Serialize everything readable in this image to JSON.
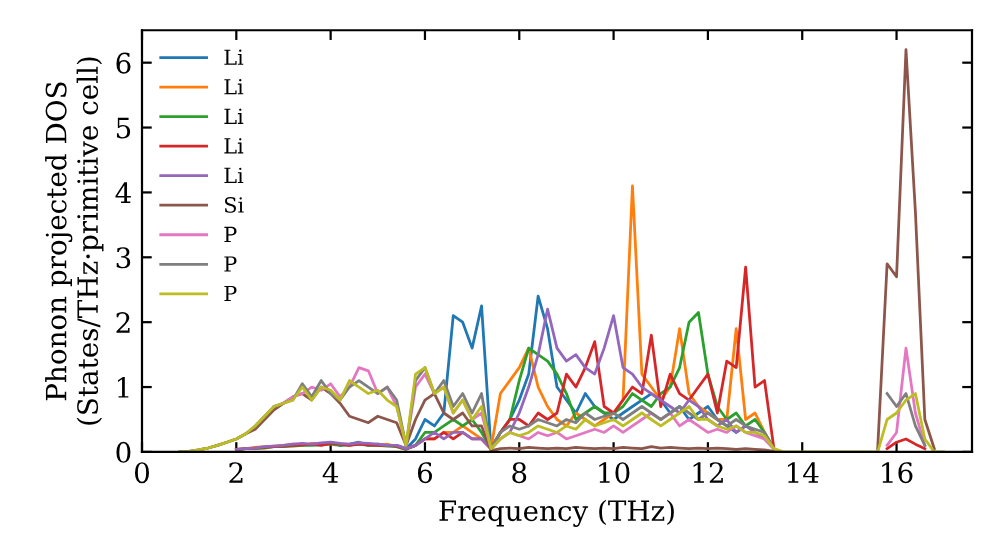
{
  "chart_data": {
    "type": "line",
    "xlabel": "Frequency (THz)",
    "ylabel": "Phonon projected DOS\n(States/THz·primitive cell)",
    "x": [
      0.8,
      1.0,
      1.2,
      1.4,
      1.6,
      1.8,
      2.0,
      2.2,
      2.4,
      2.6,
      2.8,
      3.0,
      3.2,
      3.4,
      3.6,
      3.8,
      4.0,
      4.2,
      4.4,
      4.6,
      4.8,
      5.0,
      5.2,
      5.4,
      5.6,
      5.8,
      6.0,
      6.2,
      6.4,
      6.6,
      6.8,
      7.0,
      7.2,
      7.4,
      7.6,
      7.8,
      8.0,
      8.2,
      8.4,
      8.6,
      8.8,
      9.0,
      9.2,
      9.4,
      9.6,
      9.8,
      10.0,
      10.2,
      10.4,
      10.6,
      10.8,
      11.0,
      11.2,
      11.4,
      11.6,
      11.8,
      12.0,
      12.2,
      12.4,
      12.6,
      12.8,
      13.0,
      13.2,
      13.4,
      13.6,
      13.8,
      14.0,
      14.2,
      14.4,
      14.6,
      14.8,
      15.0,
      15.2,
      15.4,
      15.6,
      15.8,
      16.0,
      16.2,
      16.4,
      16.6,
      16.8,
      17.0
    ],
    "xlim": [
      0,
      17.6
    ],
    "ylim": [
      0,
      6.5
    ],
    "xticks": [
      0,
      2,
      4,
      6,
      8,
      10,
      12,
      14,
      16
    ],
    "yticks": [
      0,
      1,
      2,
      3,
      4,
      5,
      6
    ],
    "legend": "top left",
    "grid": false,
    "series": [
      {
        "name": "Li",
        "color": "#1f77b4",
        "values": [
          null,
          null,
          null,
          null,
          null,
          null,
          null,
          null,
          null,
          null,
          null,
          null,
          null,
          null,
          null,
          null,
          null,
          0.1,
          0.12,
          0.15,
          0.1,
          0.12,
          0.1,
          0.1,
          0.05,
          0.2,
          0.5,
          0.4,
          0.6,
          2.1,
          2.0,
          1.6,
          2.25,
          0.05,
          0.3,
          0.5,
          0.8,
          1.2,
          2.4,
          1.9,
          1.0,
          0.8,
          0.6,
          0.9,
          0.7,
          0.6,
          0.5,
          0.6,
          0.7,
          0.8,
          0.9,
          0.8,
          0.6,
          0.7,
          0.5,
          0.6,
          0.7,
          0.5,
          0.4,
          0.3,
          0.4,
          null,
          null,
          null,
          null,
          null,
          null,
          null,
          null,
          null,
          null,
          null,
          null,
          null,
          null,
          null,
          null,
          null,
          null,
          null,
          null,
          null
        ]
      },
      {
        "name": "Li",
        "color": "#ff7f0e",
        "values": [
          null,
          null,
          null,
          null,
          null,
          null,
          0.04,
          0.05,
          0.07,
          0.08,
          0.09,
          0.1,
          0.12,
          0.1,
          0.13,
          0.12,
          0.14,
          0.12,
          0.1,
          0.14,
          0.12,
          0.1,
          0.12,
          0.08,
          0.04,
          0.1,
          0.2,
          0.2,
          0.3,
          0.3,
          0.4,
          0.3,
          0.2,
          0.05,
          0.9,
          1.1,
          1.3,
          1.6,
          1.0,
          0.7,
          0.5,
          0.4,
          0.6,
          0.5,
          0.4,
          0.5,
          0.6,
          0.8,
          4.1,
          1.2,
          1.0,
          0.8,
          1.0,
          1.9,
          0.9,
          0.7,
          0.6,
          0.5,
          0.5,
          1.9,
          0.5,
          0.6,
          0.3,
          0.05,
          null,
          null,
          null,
          null,
          null,
          null,
          null,
          null,
          null,
          null,
          null,
          null,
          null,
          null,
          null,
          null,
          null,
          null
        ]
      },
      {
        "name": "Li",
        "color": "#2ca02c",
        "values": [
          null,
          null,
          null,
          null,
          null,
          null,
          0.03,
          0.05,
          0.05,
          0.06,
          0.08,
          0.08,
          0.09,
          0.1,
          0.1,
          0.11,
          0.12,
          0.1,
          0.11,
          0.12,
          0.1,
          0.1,
          0.09,
          0.08,
          0.04,
          0.1,
          0.3,
          0.3,
          0.4,
          0.5,
          0.4,
          0.5,
          0.3,
          0.05,
          0.3,
          0.5,
          1.1,
          1.6,
          1.5,
          1.4,
          1.2,
          0.9,
          0.5,
          0.6,
          0.7,
          0.6,
          0.6,
          0.7,
          0.9,
          0.8,
          0.7,
          0.9,
          1.0,
          1.3,
          2.0,
          2.15,
          1.2,
          0.7,
          0.5,
          0.6,
          0.4,
          0.5,
          0.3,
          0.05,
          null,
          null,
          null,
          null,
          null,
          null,
          null,
          null,
          null,
          null,
          null,
          null,
          null,
          null,
          null,
          null,
          null,
          null
        ]
      },
      {
        "name": "Li",
        "color": "#d62728",
        "values": [
          null,
          null,
          null,
          null,
          null,
          null,
          0.04,
          0.05,
          0.06,
          0.07,
          0.08,
          0.09,
          0.1,
          0.11,
          0.12,
          0.1,
          0.13,
          0.12,
          0.1,
          0.12,
          0.11,
          0.1,
          0.1,
          0.09,
          0.05,
          0.1,
          0.2,
          0.2,
          0.3,
          0.2,
          0.3,
          0.2,
          0.2,
          0.05,
          0.3,
          0.5,
          0.5,
          0.4,
          0.6,
          0.5,
          0.6,
          1.2,
          1.0,
          1.3,
          1.7,
          0.7,
          0.6,
          0.8,
          1.0,
          0.9,
          1.8,
          0.7,
          1.2,
          0.9,
          0.8,
          1.0,
          1.2,
          0.6,
          1.4,
          1.3,
          2.85,
          1.0,
          1.1,
          0.05,
          null,
          null,
          null,
          null,
          null,
          null,
          null,
          null,
          null,
          null,
          null,
          0.05,
          0.15,
          0.2,
          0.12,
          0.05,
          null,
          null
        ]
      },
      {
        "name": "Li",
        "color": "#9467bd",
        "values": [
          null,
          null,
          null,
          null,
          null,
          null,
          0.04,
          0.05,
          0.06,
          0.08,
          0.09,
          0.1,
          0.12,
          0.13,
          0.12,
          0.14,
          0.15,
          0.13,
          0.12,
          0.14,
          0.13,
          0.12,
          0.1,
          0.1,
          0.05,
          0.1,
          0.2,
          0.3,
          0.2,
          0.3,
          0.3,
          0.2,
          0.2,
          0.05,
          0.2,
          0.3,
          0.6,
          1.0,
          1.5,
          2.2,
          1.6,
          1.4,
          1.5,
          1.3,
          1.2,
          1.6,
          2.1,
          1.3,
          1.2,
          1.0,
          0.9,
          0.8,
          0.7,
          0.6,
          0.8,
          0.7,
          0.5,
          0.4,
          0.5,
          0.3,
          0.4,
          0.3,
          0.2,
          0.05,
          null,
          null,
          null,
          null,
          null,
          null,
          null,
          null,
          null,
          null,
          null,
          null,
          null,
          null,
          null,
          null,
          null,
          null
        ]
      },
      {
        "name": "Si",
        "color": "#8c564b",
        "values": [
          0,
          0.01,
          0.03,
          0.06,
          0.1,
          0.15,
          0.2,
          0.28,
          0.35,
          0.5,
          0.65,
          0.75,
          0.85,
          0.9,
          0.8,
          1.0,
          0.9,
          0.75,
          0.55,
          0.5,
          0.45,
          0.55,
          0.5,
          0.45,
          0.1,
          0.5,
          0.8,
          0.9,
          0.6,
          0.5,
          0.6,
          0.4,
          0.4,
          0.02,
          0.05,
          0.06,
          0.05,
          0.07,
          0.06,
          0.05,
          0.06,
          0.05,
          0.07,
          0.06,
          0.05,
          0.06,
          0.05,
          0.07,
          0.06,
          0.05,
          0.08,
          0.06,
          0.07,
          0.06,
          0.05,
          0.06,
          0.05,
          0.06,
          0.05,
          0.04,
          0.05,
          0.04,
          0.03,
          0.01,
          null,
          null,
          null,
          null,
          null,
          null,
          null,
          null,
          null,
          null,
          0.05,
          2.9,
          2.7,
          6.2,
          3.7,
          0.5,
          0.05,
          null
        ]
      },
      {
        "name": "P",
        "color": "#e377c2",
        "values": [
          null,
          null,
          null,
          null,
          null,
          null,
          null,
          null,
          null,
          null,
          0.7,
          0.75,
          0.85,
          0.9,
          1.0,
          0.95,
          1.05,
          0.85,
          1.0,
          1.3,
          1.25,
          0.9,
          1.0,
          0.7,
          0.1,
          1.0,
          1.2,
          0.9,
          1.0,
          0.6,
          0.8,
          0.5,
          0.6,
          0.05,
          0.2,
          0.3,
          0.25,
          0.2,
          0.3,
          0.25,
          0.3,
          0.2,
          0.25,
          0.3,
          0.35,
          0.3,
          0.4,
          0.3,
          0.4,
          0.5,
          0.6,
          0.5,
          0.6,
          0.4,
          0.5,
          0.4,
          0.3,
          0.35,
          0.3,
          0.4,
          0.3,
          0.25,
          0.2,
          0.05,
          null,
          null,
          null,
          null,
          null,
          null,
          null,
          null,
          null,
          null,
          null,
          0.1,
          0.3,
          1.6,
          0.6,
          0.1,
          null,
          null
        ]
      },
      {
        "name": "P",
        "color": "#7f7f7f",
        "values": [
          0,
          0.01,
          0.03,
          0.06,
          0.1,
          0.15,
          0.2,
          0.28,
          0.4,
          0.55,
          0.7,
          0.75,
          0.8,
          1.05,
          0.85,
          1.1,
          0.9,
          0.8,
          1.0,
          1.1,
          1.0,
          0.9,
          1.0,
          0.8,
          0.1,
          1.1,
          1.3,
          0.9,
          1.1,
          0.7,
          0.9,
          0.6,
          0.9,
          0.05,
          0.3,
          0.4,
          0.35,
          0.4,
          0.5,
          0.45,
          0.4,
          0.5,
          0.45,
          0.6,
          0.5,
          0.55,
          0.6,
          0.5,
          0.6,
          0.7,
          0.6,
          0.5,
          0.6,
          0.7,
          0.6,
          0.5,
          0.6,
          0.5,
          0.4,
          0.5,
          0.4,
          0.35,
          0.3,
          0.05,
          null,
          null,
          null,
          null,
          null,
          null,
          null,
          null,
          null,
          null,
          null,
          0.9,
          0.7,
          0.9,
          0.4,
          0.1,
          null,
          null
        ]
      },
      {
        "name": "P",
        "color": "#bcbd22",
        "values": [
          0,
          0.01,
          0.03,
          0.06,
          0.1,
          0.15,
          0.2,
          0.28,
          0.4,
          0.55,
          0.7,
          0.75,
          0.8,
          1.0,
          0.8,
          1.0,
          0.95,
          0.8,
          1.1,
          1.0,
          0.9,
          0.95,
          0.8,
          0.7,
          0.1,
          1.2,
          1.3,
          0.9,
          1.0,
          0.6,
          0.8,
          0.5,
          0.7,
          0.05,
          0.2,
          0.3,
          0.25,
          0.3,
          0.4,
          0.35,
          0.3,
          0.4,
          0.35,
          0.5,
          0.4,
          0.45,
          0.5,
          0.4,
          0.5,
          0.6,
          0.5,
          0.4,
          0.5,
          0.6,
          0.7,
          0.5,
          0.5,
          0.4,
          0.35,
          0.4,
          0.3,
          0.3,
          0.25,
          0.05,
          0,
          0,
          0,
          0,
          0,
          0,
          0,
          0,
          0,
          0,
          0,
          0.5,
          0.6,
          0.8,
          0.9,
          0.2,
          0,
          0
        ]
      }
    ]
  }
}
